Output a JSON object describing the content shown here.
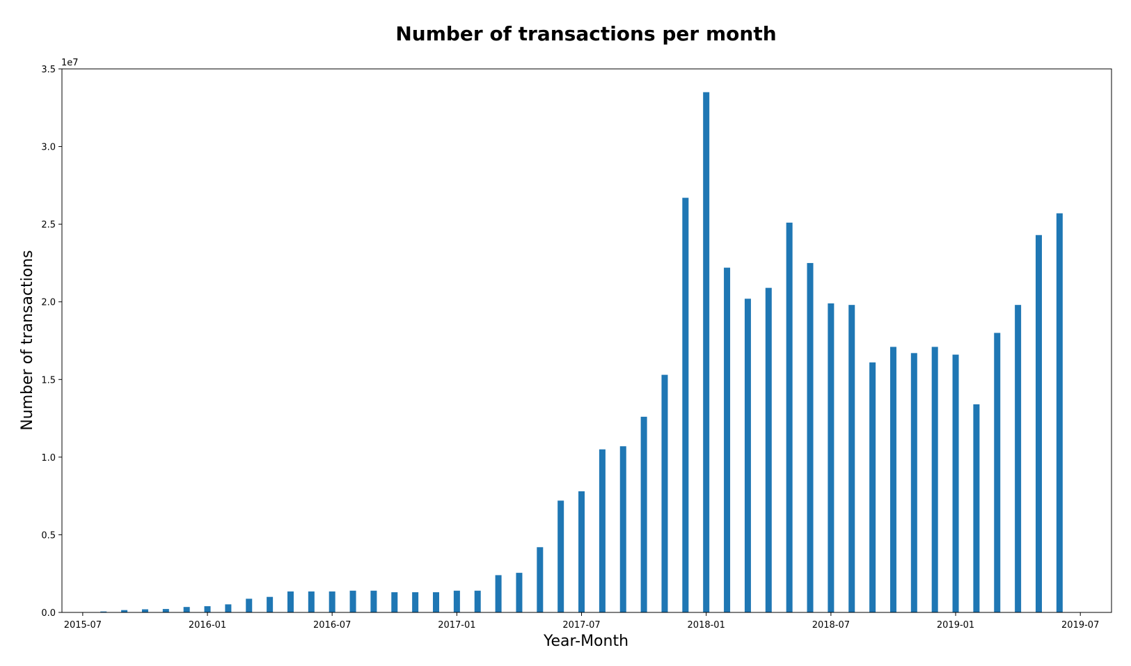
{
  "chart_data": {
    "type": "bar",
    "title": "Number of transactions per month",
    "xlabel": "Year-Month",
    "ylabel": "Number of transactions",
    "y_offset_label": "1e7",
    "y_scale": 10000000,
    "ylim": [
      0,
      35000000
    ],
    "xlim": [
      "2015-07",
      "2019-07"
    ],
    "grid": false,
    "legend": "none",
    "bar_color": "#1f77b4",
    "y_ticks": [
      {
        "value": 0,
        "label": "0.0"
      },
      {
        "value": 5000000,
        "label": "0.5"
      },
      {
        "value": 10000000,
        "label": "1.0"
      },
      {
        "value": 15000000,
        "label": "1.5"
      },
      {
        "value": 20000000,
        "label": "2.0"
      },
      {
        "value": 25000000,
        "label": "2.5"
      },
      {
        "value": 30000000,
        "label": "3.0"
      },
      {
        "value": 35000000,
        "label": "3.5"
      }
    ],
    "x_ticks": [
      {
        "value": "2015-07",
        "label": "2015-07"
      },
      {
        "value": "2016-01",
        "label": "2016-01"
      },
      {
        "value": "2016-07",
        "label": "2016-07"
      },
      {
        "value": "2017-01",
        "label": "2017-01"
      },
      {
        "value": "2017-07",
        "label": "2017-07"
      },
      {
        "value": "2018-01",
        "label": "2018-01"
      },
      {
        "value": "2018-07",
        "label": "2018-07"
      },
      {
        "value": "2019-01",
        "label": "2019-01"
      },
      {
        "value": "2019-07",
        "label": "2019-07"
      }
    ],
    "categories": [
      "2015-08",
      "2015-09",
      "2015-10",
      "2015-11",
      "2015-12",
      "2016-01",
      "2016-02",
      "2016-03",
      "2016-04",
      "2016-05",
      "2016-06",
      "2016-07",
      "2016-08",
      "2016-09",
      "2016-10",
      "2016-11",
      "2016-12",
      "2017-01",
      "2017-02",
      "2017-03",
      "2017-04",
      "2017-05",
      "2017-06",
      "2017-07",
      "2017-08",
      "2017-09",
      "2017-10",
      "2017-11",
      "2017-12",
      "2018-01",
      "2018-02",
      "2018-03",
      "2018-04",
      "2018-05",
      "2018-06",
      "2018-07",
      "2018-08",
      "2018-09",
      "2018-10",
      "2018-11",
      "2018-12",
      "2019-01",
      "2019-02",
      "2019-03",
      "2019-04",
      "2019-05",
      "2019-06"
    ],
    "values": [
      60000,
      150000,
      200000,
      220000,
      350000,
      400000,
      520000,
      880000,
      1000000,
      1350000,
      1350000,
      1350000,
      1400000,
      1400000,
      1300000,
      1300000,
      1300000,
      1400000,
      1400000,
      2400000,
      2550000,
      4200000,
      7200000,
      7800000,
      10500000,
      10700000,
      12600000,
      15300000,
      26700000,
      33500000,
      22200000,
      20200000,
      20900000,
      25100000,
      22500000,
      19900000,
      19800000,
      16100000,
      17100000,
      16700000,
      17100000,
      16600000,
      13400000,
      18000000,
      19800000,
      24300000,
      25700000
    ]
  }
}
